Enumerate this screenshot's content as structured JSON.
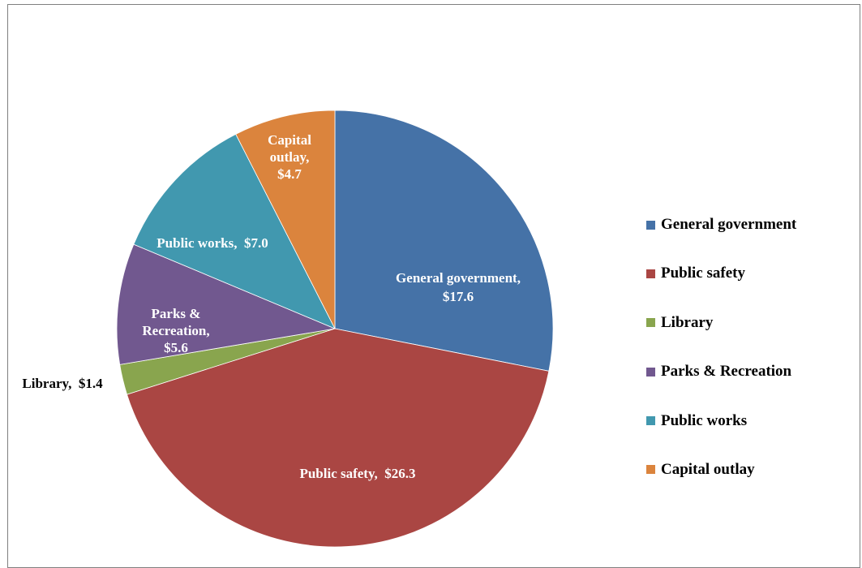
{
  "chart_data": {
    "type": "pie",
    "title": "",
    "slices": [
      {
        "category": "General government",
        "value": 17.6,
        "label_lines": [
          "General government,",
          "$17.6"
        ],
        "color": "#4572A7"
      },
      {
        "category": "Public safety",
        "value": 26.3,
        "label_lines": [
          "Public safety,  $26.3"
        ],
        "color": "#AA4643"
      },
      {
        "category": "Library",
        "value": 1.4,
        "label_lines": [
          "Library,  $1.4"
        ],
        "color": "#89A54E"
      },
      {
        "category": "Parks & Recreation",
        "value": 5.6,
        "label_lines": [
          "Parks &",
          "Recreation,",
          "$5.6"
        ],
        "color": "#71588F"
      },
      {
        "category": "Public works",
        "value": 7.0,
        "label_lines": [
          "Public works,  $7.0"
        ],
        "color": "#4198AF"
      },
      {
        "category": "Capital outlay",
        "value": 4.7,
        "label_lines": [
          "Capital",
          "outlay,",
          "$4.7"
        ],
        "color": "#DB843D"
      }
    ],
    "legend": {
      "placement": "right",
      "entries": [
        "General government",
        "Public safety",
        "Library",
        "Parks & Recreation",
        "Public works",
        "Capital outlay"
      ]
    }
  }
}
